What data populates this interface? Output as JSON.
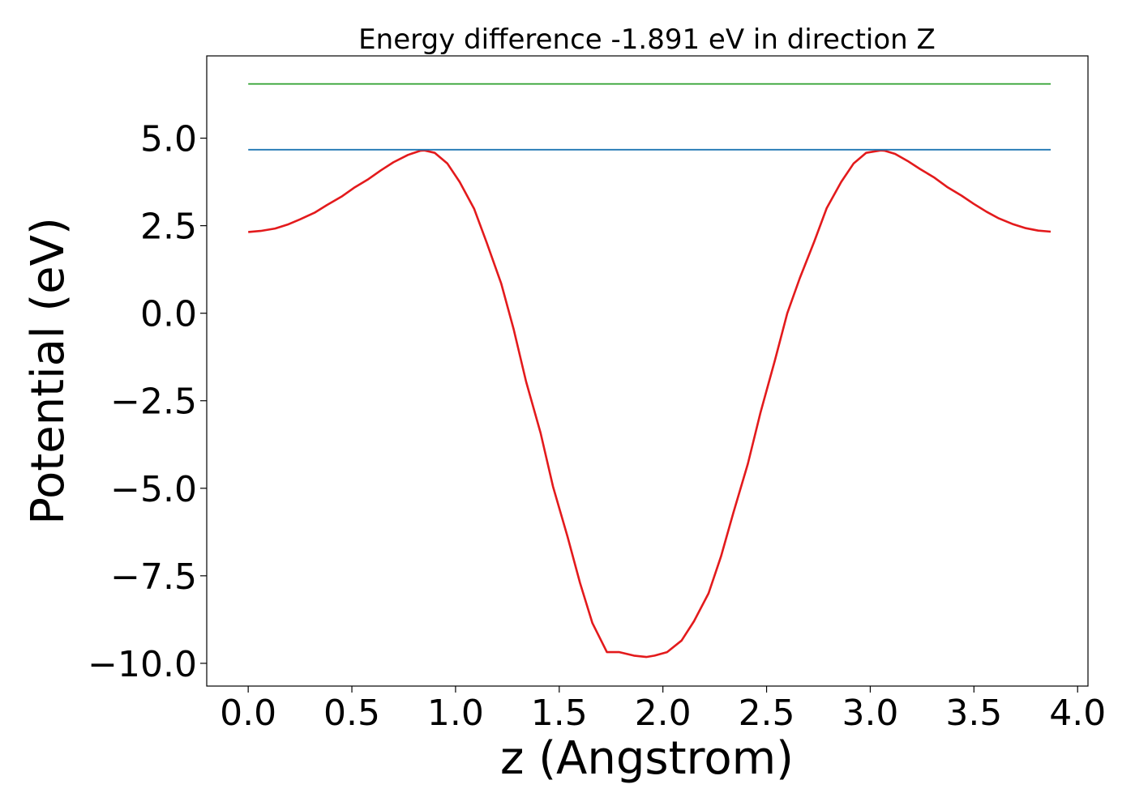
{
  "chart_data": {
    "type": "line",
    "title": "Energy difference -1.891 eV in direction Z",
    "xlabel": "z (Angstrom)",
    "ylabel": "Potential (eV)",
    "xlim": [
      -0.2,
      4.05
    ],
    "ylim": [
      -10.65,
      7.35
    ],
    "x_ticks": [
      0.0,
      0.5,
      1.0,
      1.5,
      2.0,
      2.5,
      3.0,
      3.5,
      4.0
    ],
    "x_tick_labels": [
      "0.0",
      "0.5",
      "1.0",
      "1.5",
      "2.0",
      "2.5",
      "3.0",
      "3.5",
      "4.0"
    ],
    "y_ticks": [
      5.0,
      2.5,
      0.0,
      -2.5,
      -5.0,
      -7.5,
      -10.0
    ],
    "y_tick_labels": [
      "5.0",
      "2.5",
      "0.0",
      "−2.5",
      "−5.0",
      "−7.5",
      "−10.0"
    ],
    "grid": false,
    "legend": false,
    "series": [
      {
        "kind": "curve",
        "color": "#e31a1c",
        "x": [
          0.0,
          0.06,
          0.13,
          0.19,
          0.25,
          0.32,
          0.38,
          0.45,
          0.51,
          0.58,
          0.64,
          0.7,
          0.77,
          0.83,
          0.85,
          0.9,
          0.96,
          1.02,
          1.09,
          1.15,
          1.22,
          1.28,
          1.34,
          1.41,
          1.47,
          1.54,
          1.6,
          1.66,
          1.73,
          1.79,
          1.86,
          1.92,
          1.96,
          2.02,
          2.09,
          2.15,
          2.22,
          2.28,
          2.34,
          2.41,
          2.47,
          2.54,
          2.6,
          2.66,
          2.73,
          2.79,
          2.86,
          2.92,
          2.98,
          3.05,
          3.07,
          3.12,
          3.18,
          3.24,
          3.31,
          3.37,
          3.44,
          3.5,
          3.56,
          3.62,
          3.69,
          3.75,
          3.81,
          3.87
        ],
        "y": [
          2.32,
          2.35,
          2.42,
          2.53,
          2.68,
          2.87,
          3.09,
          3.33,
          3.58,
          3.83,
          4.08,
          4.31,
          4.52,
          4.64,
          4.65,
          4.58,
          4.28,
          3.75,
          2.98,
          2.02,
          0.85,
          -0.45,
          -1.95,
          -3.42,
          -4.95,
          -6.38,
          -7.7,
          -8.85,
          -9.68,
          -9.68,
          -9.78,
          -9.82,
          -9.78,
          -9.68,
          -9.35,
          -8.8,
          -8.0,
          -6.95,
          -5.7,
          -4.3,
          -2.85,
          -1.35,
          0.0,
          1.0,
          2.05,
          3.0,
          3.75,
          4.28,
          4.58,
          4.65,
          4.64,
          4.55,
          4.35,
          4.12,
          3.87,
          3.61,
          3.36,
          3.12,
          2.9,
          2.71,
          2.54,
          2.43,
          2.36,
          2.33
        ]
      },
      {
        "kind": "hline",
        "color": "#1f77b4",
        "x": [
          0.0,
          3.87
        ],
        "y": [
          4.67,
          4.67
        ]
      },
      {
        "kind": "hline",
        "color": "#2ca02c",
        "x": [
          0.0,
          3.87
        ],
        "y": [
          6.55,
          6.55
        ]
      }
    ]
  }
}
